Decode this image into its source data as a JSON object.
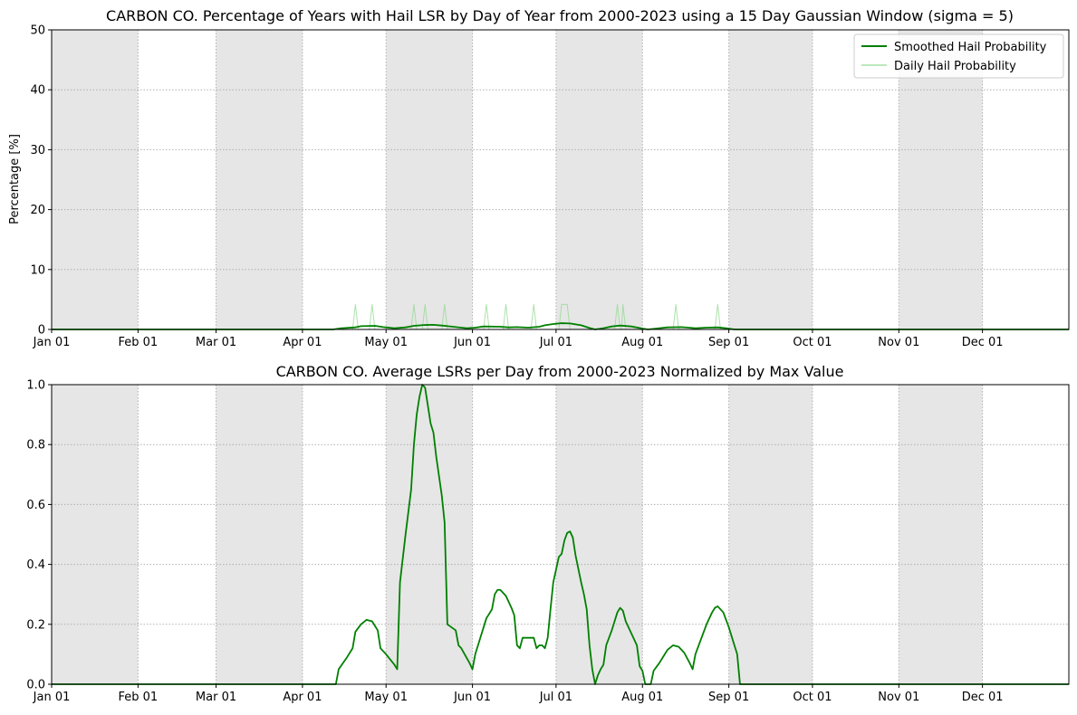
{
  "chart_data": [
    {
      "type": "line",
      "title": "CARBON CO. Percentage of Years with Hail LSR by Day of Year from 2000-2023 using a 15 Day Gaussian Window (sigma = 5)",
      "xlabel": "",
      "ylabel": "Percentage [%]",
      "xlim": [
        1,
        366
      ],
      "ylim": [
        0,
        50
      ],
      "yticks": [
        "0",
        "10",
        "20",
        "30",
        "40",
        "50"
      ],
      "xticks": [
        {
          "label": "Jan 01",
          "day": 1
        },
        {
          "label": "Feb 01",
          "day": 32
        },
        {
          "label": "Mar 01",
          "day": 60
        },
        {
          "label": "Apr 01",
          "day": 91
        },
        {
          "label": "May 01",
          "day": 121
        },
        {
          "label": "Jun 01",
          "day": 152
        },
        {
          "label": "Jul 01",
          "day": 182
        },
        {
          "label": "Aug 01",
          "day": 213
        },
        {
          "label": "Sep 01",
          "day": 244
        },
        {
          "label": "Oct 01",
          "day": 274
        },
        {
          "label": "Nov 01",
          "day": 305
        },
        {
          "label": "Dec 01",
          "day": 335
        }
      ],
      "shaded_months": [
        [
          1,
          32
        ],
        [
          60,
          91
        ],
        [
          121,
          152
        ],
        [
          182,
          213
        ],
        [
          244,
          274
        ],
        [
          305,
          335
        ]
      ],
      "grid": true,
      "legend": "top-right",
      "series": [
        {
          "name": "Smoothed Hail Probability",
          "color": "#008000",
          "points": [
            [
              1,
              0
            ],
            [
              102,
              0
            ],
            [
              105,
              0.2
            ],
            [
              110,
              0.35
            ],
            [
              112,
              0.55
            ],
            [
              117,
              0.6
            ],
            [
              120,
              0.4
            ],
            [
              124,
              0.2
            ],
            [
              128,
              0.35
            ],
            [
              131,
              0.6
            ],
            [
              135,
              0.75
            ],
            [
              138,
              0.78
            ],
            [
              141,
              0.65
            ],
            [
              145,
              0.45
            ],
            [
              150,
              0.2
            ],
            [
              153,
              0.3
            ],
            [
              156,
              0.5
            ],
            [
              162,
              0.45
            ],
            [
              165,
              0.35
            ],
            [
              168,
              0.4
            ],
            [
              172,
              0.3
            ],
            [
              176,
              0.45
            ],
            [
              178,
              0.7
            ],
            [
              181,
              0.9
            ],
            [
              184,
              1.05
            ],
            [
              187,
              1.0
            ],
            [
              191,
              0.7
            ],
            [
              194,
              0.25
            ],
            [
              196,
              0
            ],
            [
              199,
              0.2
            ],
            [
              202,
              0.5
            ],
            [
              205,
              0.65
            ],
            [
              209,
              0.5
            ],
            [
              213,
              0.15
            ],
            [
              215,
              0
            ],
            [
              218,
              0.15
            ],
            [
              222,
              0.35
            ],
            [
              227,
              0.4
            ],
            [
              232,
              0.2
            ],
            [
              236,
              0.3
            ],
            [
              240,
              0.35
            ],
            [
              243,
              0.2
            ],
            [
              246,
              0
            ],
            [
              366,
              0
            ]
          ]
        },
        {
          "name": "Daily Hail Probability",
          "color": "#90d890",
          "points": [
            [
              1,
              0
            ],
            [
              109,
              0
            ],
            [
              110,
              4.17
            ],
            [
              111,
              0
            ],
            [
              115,
              0
            ],
            [
              116,
              4.17
            ],
            [
              117,
              0
            ],
            [
              130,
              0
            ],
            [
              131,
              4.17
            ],
            [
              132,
              0
            ],
            [
              134,
              0
            ],
            [
              135,
              4.17
            ],
            [
              136,
              0
            ],
            [
              141,
              0
            ],
            [
              142,
              4.17
            ],
            [
              143,
              0
            ],
            [
              156,
              0
            ],
            [
              157,
              4.17
            ],
            [
              158,
              0
            ],
            [
              163,
              0
            ],
            [
              164,
              4.17
            ],
            [
              165,
              0
            ],
            [
              173,
              0
            ],
            [
              174,
              4.17
            ],
            [
              175,
              0
            ],
            [
              183,
              0
            ],
            [
              184,
              4.17
            ],
            [
              186,
              4.17
            ],
            [
              187,
              0
            ],
            [
              203,
              0
            ],
            [
              204,
              4.17
            ],
            [
              205,
              0
            ],
            [
              205.5,
              0
            ],
            [
              206,
              4.17
            ],
            [
              207,
              0
            ],
            [
              224,
              0
            ],
            [
              225,
              4.17
            ],
            [
              226,
              0
            ],
            [
              239,
              0
            ],
            [
              240,
              4.17
            ],
            [
              241,
              0
            ],
            [
              366,
              0
            ]
          ]
        }
      ]
    },
    {
      "type": "line",
      "title": "CARBON CO. Average LSRs per Day from 2000-2023 Normalized by Max Value",
      "xlabel": "",
      "ylabel": "",
      "xlim": [
        1,
        366
      ],
      "ylim": [
        0,
        1.0
      ],
      "yticks": [
        "0.0",
        "0.2",
        "0.4",
        "0.6",
        "0.8",
        "1.0"
      ],
      "xticks": [
        {
          "label": "Jan 01",
          "day": 1
        },
        {
          "label": "Feb 01",
          "day": 32
        },
        {
          "label": "Mar 01",
          "day": 60
        },
        {
          "label": "Apr 01",
          "day": 91
        },
        {
          "label": "May 01",
          "day": 121
        },
        {
          "label": "Jun 01",
          "day": 152
        },
        {
          "label": "Jul 01",
          "day": 182
        },
        {
          "label": "Aug 01",
          "day": 213
        },
        {
          "label": "Sep 01",
          "day": 244
        },
        {
          "label": "Oct 01",
          "day": 274
        },
        {
          "label": "Nov 01",
          "day": 305
        },
        {
          "label": "Dec 01",
          "day": 335
        }
      ],
      "shaded_months": [
        [
          1,
          32
        ],
        [
          60,
          91
        ],
        [
          121,
          152
        ],
        [
          182,
          213
        ],
        [
          244,
          274
        ],
        [
          305,
          335
        ]
      ],
      "grid": true,
      "series": [
        {
          "color": "#008000",
          "points": [
            [
              1,
              0
            ],
            [
              103,
              0
            ],
            [
              104,
              0.05
            ],
            [
              107,
              0.09
            ],
            [
              109,
              0.12
            ],
            [
              110,
              0.175
            ],
            [
              112,
              0.2
            ],
            [
              114,
              0.215
            ],
            [
              116,
              0.21
            ],
            [
              118,
              0.18
            ],
            [
              119,
              0.12
            ],
            [
              121,
              0.1
            ],
            [
              124,
              0.065
            ],
            [
              125,
              0.05
            ],
            [
              126,
              0.34
            ],
            [
              128,
              0.5
            ],
            [
              130,
              0.65
            ],
            [
              131,
              0.8
            ],
            [
              132,
              0.9
            ],
            [
              133,
              0.96
            ],
            [
              134,
              1.0
            ],
            [
              135,
              0.99
            ],
            [
              136,
              0.93
            ],
            [
              137,
              0.87
            ],
            [
              138,
              0.84
            ],
            [
              139,
              0.76
            ],
            [
              141,
              0.63
            ],
            [
              142,
              0.54
            ],
            [
              143,
              0.2
            ],
            [
              146,
              0.18
            ],
            [
              147,
              0.13
            ],
            [
              148,
              0.12
            ],
            [
              151,
              0.07
            ],
            [
              152,
              0.05
            ],
            [
              153,
              0.1
            ],
            [
              155,
              0.16
            ],
            [
              157,
              0.22
            ],
            [
              159,
              0.25
            ],
            [
              160,
              0.3
            ],
            [
              161,
              0.315
            ],
            [
              162,
              0.315
            ],
            [
              164,
              0.295
            ],
            [
              166,
              0.255
            ],
            [
              167,
              0.23
            ],
            [
              168,
              0.13
            ],
            [
              169,
              0.12
            ],
            [
              170,
              0.155
            ],
            [
              174,
              0.155
            ],
            [
              175,
              0.12
            ],
            [
              176,
              0.13
            ],
            [
              177,
              0.13
            ],
            [
              178,
              0.12
            ],
            [
              179,
              0.155
            ],
            [
              180,
              0.25
            ],
            [
              181,
              0.34
            ],
            [
              183,
              0.425
            ],
            [
              184,
              0.435
            ],
            [
              185,
              0.48
            ],
            [
              186,
              0.505
            ],
            [
              187,
              0.51
            ],
            [
              188,
              0.49
            ],
            [
              189,
              0.43
            ],
            [
              191,
              0.34
            ],
            [
              192,
              0.3
            ],
            [
              193,
              0.25
            ],
            [
              194,
              0.13
            ],
            [
              195,
              0.05
            ],
            [
              196,
              0
            ],
            [
              197,
              0.03
            ],
            [
              198,
              0.05
            ],
            [
              199,
              0.065
            ],
            [
              200,
              0.13
            ],
            [
              202,
              0.18
            ],
            [
              203,
              0.21
            ],
            [
              204,
              0.24
            ],
            [
              205,
              0.255
            ],
            [
              206,
              0.245
            ],
            [
              207,
              0.21
            ],
            [
              209,
              0.17
            ],
            [
              211,
              0.13
            ],
            [
              212,
              0.06
            ],
            [
              213,
              0.045
            ],
            [
              214,
              0
            ],
            [
              216,
              0
            ],
            [
              217,
              0.045
            ],
            [
              219,
              0.07
            ],
            [
              221,
              0.1
            ],
            [
              222,
              0.115
            ],
            [
              224,
              0.13
            ],
            [
              226,
              0.125
            ],
            [
              228,
              0.105
            ],
            [
              230,
              0.07
            ],
            [
              231,
              0.05
            ],
            [
              232,
              0.1
            ],
            [
              234,
              0.15
            ],
            [
              236,
              0.2
            ],
            [
              238,
              0.24
            ],
            [
              239,
              0.255
            ],
            [
              240,
              0.26
            ],
            [
              242,
              0.24
            ],
            [
              244,
              0.19
            ],
            [
              246,
              0.13
            ],
            [
              247,
              0.1
            ],
            [
              248,
              0
            ],
            [
              366,
              0
            ]
          ]
        }
      ]
    }
  ]
}
